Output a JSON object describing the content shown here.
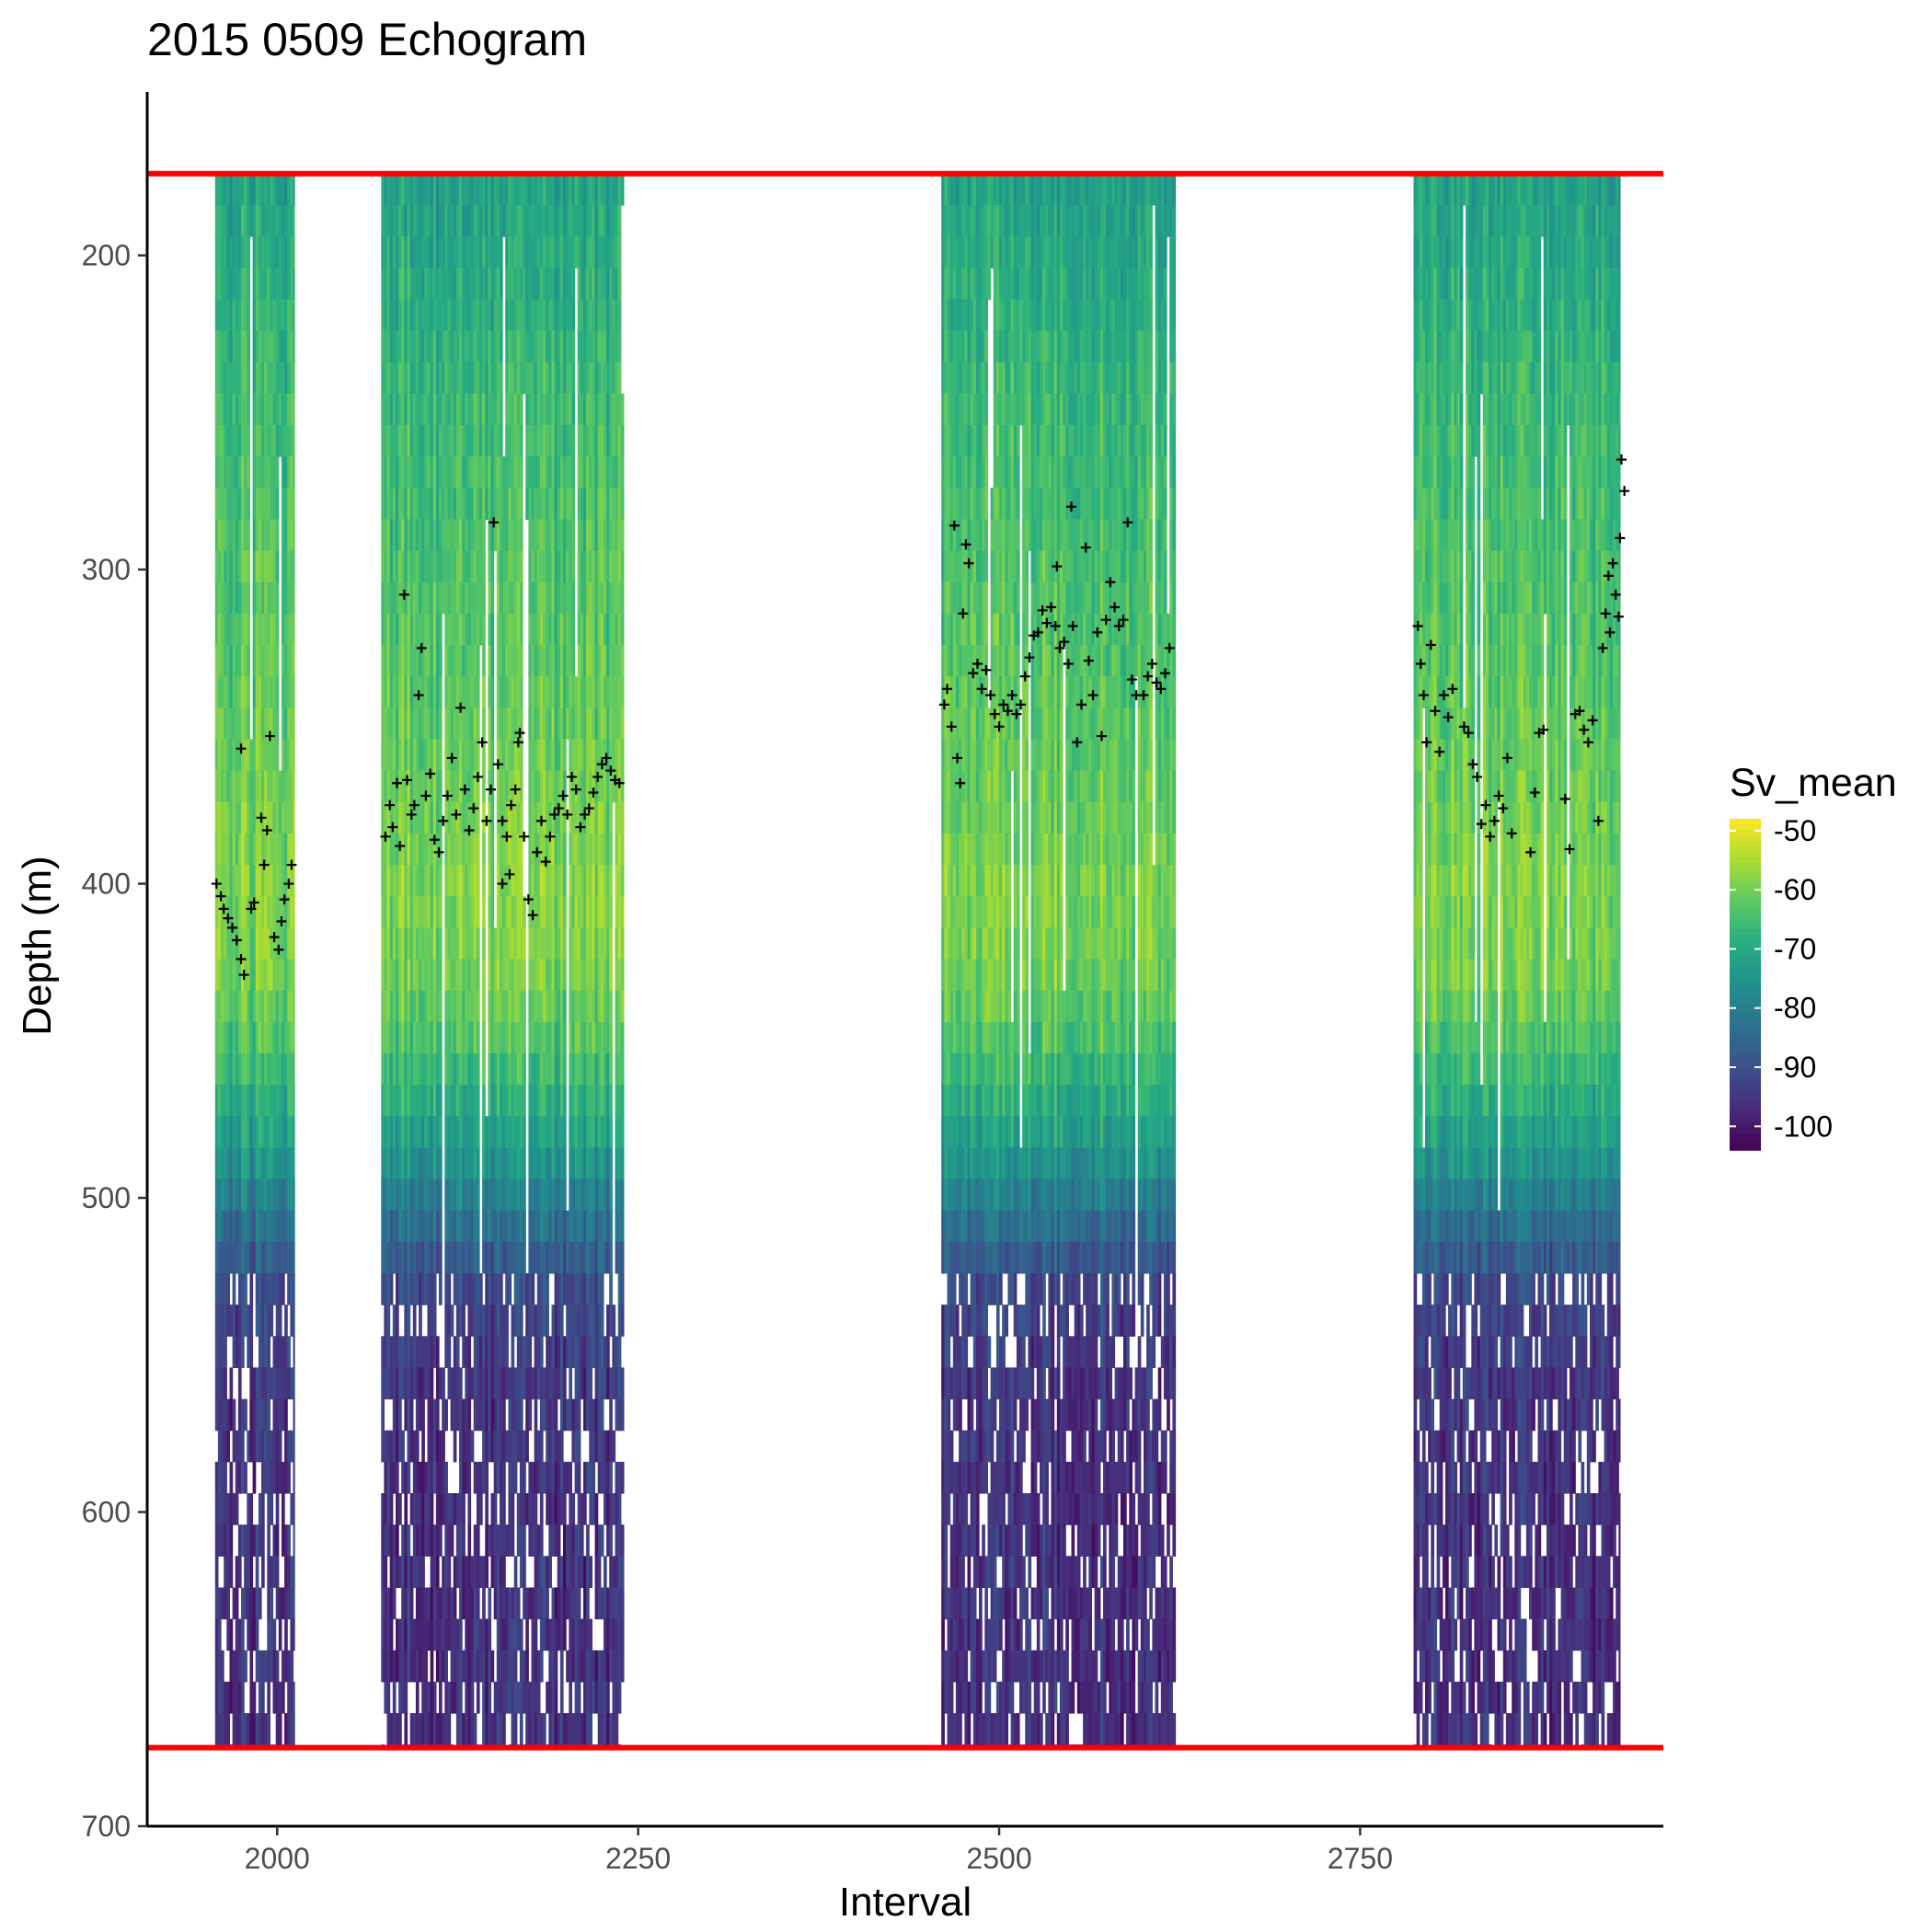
{
  "chart_data": {
    "type": "heatmap",
    "title": "2015 0509 Echogram",
    "xlabel": "Interval",
    "ylabel": "Depth (m)",
    "xlim": [
      1910,
      2960
    ],
    "ylim": [
      700,
      148
    ],
    "y_reversed": true,
    "x_ticks": [
      2000,
      2250,
      2500,
      2750
    ],
    "x_tick_labels": [
      "2000",
      "2250",
      "2500",
      "2750"
    ],
    "y_ticks": [
      200,
      300,
      400,
      500,
      600,
      700
    ],
    "y_tick_labels": [
      "200",
      "300",
      "400",
      "500",
      "600",
      "700"
    ],
    "grid": false,
    "legend": {
      "title": "Sv_mean",
      "placement": "right",
      "colormap": "viridis",
      "range": [
        -104,
        -48
      ],
      "ticks": [
        -50,
        -60,
        -70,
        -80,
        -90,
        -100
      ],
      "tick_labels": [
        "-50",
        "-60",
        "-70",
        "-80",
        "-90",
        "-100"
      ]
    },
    "depth_range": [
      174,
      675
    ],
    "reference_lines": [
      {
        "depth": 174,
        "color": "#ff0000"
      },
      {
        "depth": 675,
        "color": "#ff0000"
      }
    ],
    "interval_blocks": [
      {
        "start": 1957,
        "end": 2012
      },
      {
        "start": 2072,
        "end": 2240
      },
      {
        "start": 2460,
        "end": 2622
      },
      {
        "start": 2787,
        "end": 2930
      }
    ],
    "sv_profile": {
      "depth": [
        174,
        200,
        250,
        300,
        350,
        400,
        430,
        450,
        480,
        500,
        530,
        560,
        600,
        640,
        675
      ],
      "sv": [
        -72,
        -70,
        -66,
        -64,
        -62,
        -59,
        -60,
        -64,
        -72,
        -80,
        -92,
        -95,
        -96,
        -96,
        -96
      ]
    },
    "marker_symbol": "+",
    "marker_color": "#000000",
    "markers": [
      [
        1958,
        400
      ],
      [
        1961,
        404
      ],
      [
        1963,
        408
      ],
      [
        1966,
        411
      ],
      [
        1969,
        414
      ],
      [
        1972,
        418
      ],
      [
        1975,
        424
      ],
      [
        1977,
        429
      ],
      [
        1975,
        357
      ],
      [
        1982,
        408
      ],
      [
        1984,
        406
      ],
      [
        1989,
        379
      ],
      [
        1991,
        394
      ],
      [
        1993,
        383
      ],
      [
        1995,
        353
      ],
      [
        1998,
        417
      ],
      [
        2001,
        421
      ],
      [
        2003,
        412
      ],
      [
        2005,
        405
      ],
      [
        2008,
        400
      ],
      [
        2010,
        394
      ],
      [
        2075,
        385
      ],
      [
        2078,
        375
      ],
      [
        2080,
        382
      ],
      [
        2083,
        368
      ],
      [
        2085,
        388
      ],
      [
        2088,
        308
      ],
      [
        2090,
        367
      ],
      [
        2093,
        378
      ],
      [
        2095,
        375
      ],
      [
        2098,
        340
      ],
      [
        2100,
        325
      ],
      [
        2103,
        372
      ],
      [
        2106,
        365
      ],
      [
        2109,
        386
      ],
      [
        2112,
        390
      ],
      [
        2115,
        380
      ],
      [
        2118,
        372
      ],
      [
        2121,
        360
      ],
      [
        2124,
        378
      ],
      [
        2127,
        344
      ],
      [
        2130,
        370
      ],
      [
        2133,
        383
      ],
      [
        2136,
        376
      ],
      [
        2139,
        366
      ],
      [
        2142,
        355
      ],
      [
        2145,
        380
      ],
      [
        2148,
        370
      ],
      [
        2150,
        285
      ],
      [
        2153,
        362
      ],
      [
        2156,
        380
      ],
      [
        2159,
        385
      ],
      [
        2162,
        375
      ],
      [
        2165,
        370
      ],
      [
        2168,
        352
      ],
      [
        2171,
        385
      ],
      [
        2174,
        405
      ],
      [
        2177,
        410
      ],
      [
        2180,
        390
      ],
      [
        2183,
        380
      ],
      [
        2186,
        393
      ],
      [
        2189,
        385
      ],
      [
        2192,
        378
      ],
      [
        2195,
        376
      ],
      [
        2198,
        372
      ],
      [
        2201,
        378
      ],
      [
        2204,
        366
      ],
      [
        2207,
        370
      ],
      [
        2210,
        382
      ],
      [
        2213,
        378
      ],
      [
        2216,
        376
      ],
      [
        2219,
        371
      ],
      [
        2222,
        366
      ],
      [
        2225,
        362
      ],
      [
        2228,
        360
      ],
      [
        2231,
        364
      ],
      [
        2234,
        367
      ],
      [
        2237,
        368
      ],
      [
        2156,
        400
      ],
      [
        2161,
        397
      ],
      [
        2167,
        355
      ],
      [
        2462,
        343
      ],
      [
        2464,
        338
      ],
      [
        2467,
        350
      ],
      [
        2469,
        286
      ],
      [
        2471,
        360
      ],
      [
        2473,
        368
      ],
      [
        2475,
        314
      ],
      [
        2477,
        292
      ],
      [
        2479,
        298
      ],
      [
        2482,
        333
      ],
      [
        2485,
        330
      ],
      [
        2488,
        338
      ],
      [
        2491,
        332
      ],
      [
        2494,
        340
      ],
      [
        2497,
        346
      ],
      [
        2500,
        350
      ],
      [
        2503,
        343
      ],
      [
        2506,
        345
      ],
      [
        2509,
        340
      ],
      [
        2512,
        346
      ],
      [
        2515,
        343
      ],
      [
        2518,
        334
      ],
      [
        2521,
        328
      ],
      [
        2524,
        321
      ],
      [
        2527,
        320
      ],
      [
        2530,
        313
      ],
      [
        2533,
        317
      ],
      [
        2536,
        312
      ],
      [
        2539,
        318
      ],
      [
        2542,
        325
      ],
      [
        2545,
        323
      ],
      [
        2548,
        330
      ],
      [
        2551,
        318
      ],
      [
        2554,
        355
      ],
      [
        2557,
        343
      ],
      [
        2560,
        293
      ],
      [
        2562,
        329
      ],
      [
        2565,
        340
      ],
      [
        2568,
        320
      ],
      [
        2571,
        353
      ],
      [
        2574,
        316
      ],
      [
        2577,
        304
      ],
      [
        2580,
        312
      ],
      [
        2583,
        318
      ],
      [
        2586,
        316
      ],
      [
        2589,
        285
      ],
      [
        2592,
        335
      ],
      [
        2595,
        340
      ],
      [
        2600,
        340
      ],
      [
        2603,
        334
      ],
      [
        2606,
        330
      ],
      [
        2609,
        336
      ],
      [
        2612,
        338
      ],
      [
        2615,
        333
      ],
      [
        2618,
        325
      ],
      [
        2540,
        299
      ],
      [
        2550,
        280
      ],
      [
        2790,
        318
      ],
      [
        2792,
        330
      ],
      [
        2794,
        340
      ],
      [
        2796,
        355
      ],
      [
        2799,
        324
      ],
      [
        2802,
        345
      ],
      [
        2805,
        358
      ],
      [
        2808,
        340
      ],
      [
        2811,
        347
      ],
      [
        2814,
        338
      ],
      [
        2822,
        350
      ],
      [
        2825,
        352
      ],
      [
        2828,
        362
      ],
      [
        2831,
        366
      ],
      [
        2834,
        381
      ],
      [
        2837,
        375
      ],
      [
        2840,
        385
      ],
      [
        2843,
        380
      ],
      [
        2846,
        372
      ],
      [
        2849,
        376
      ],
      [
        2852,
        360
      ],
      [
        2855,
        384
      ],
      [
        2868,
        390
      ],
      [
        2871,
        371
      ],
      [
        2874,
        352
      ],
      [
        2877,
        351
      ],
      [
        2892,
        373
      ],
      [
        2895,
        389
      ],
      [
        2899,
        346
      ],
      [
        2902,
        345
      ],
      [
        2905,
        351
      ],
      [
        2908,
        355
      ],
      [
        2911,
        348
      ],
      [
        2915,
        380
      ],
      [
        2918,
        325
      ],
      [
        2920,
        314
      ],
      [
        2922,
        302
      ],
      [
        2925,
        298
      ],
      [
        2927,
        308
      ],
      [
        2929,
        315
      ],
      [
        2931,
        265
      ],
      [
        2933,
        275
      ],
      [
        2930,
        290
      ],
      [
        2923,
        320
      ]
    ]
  }
}
